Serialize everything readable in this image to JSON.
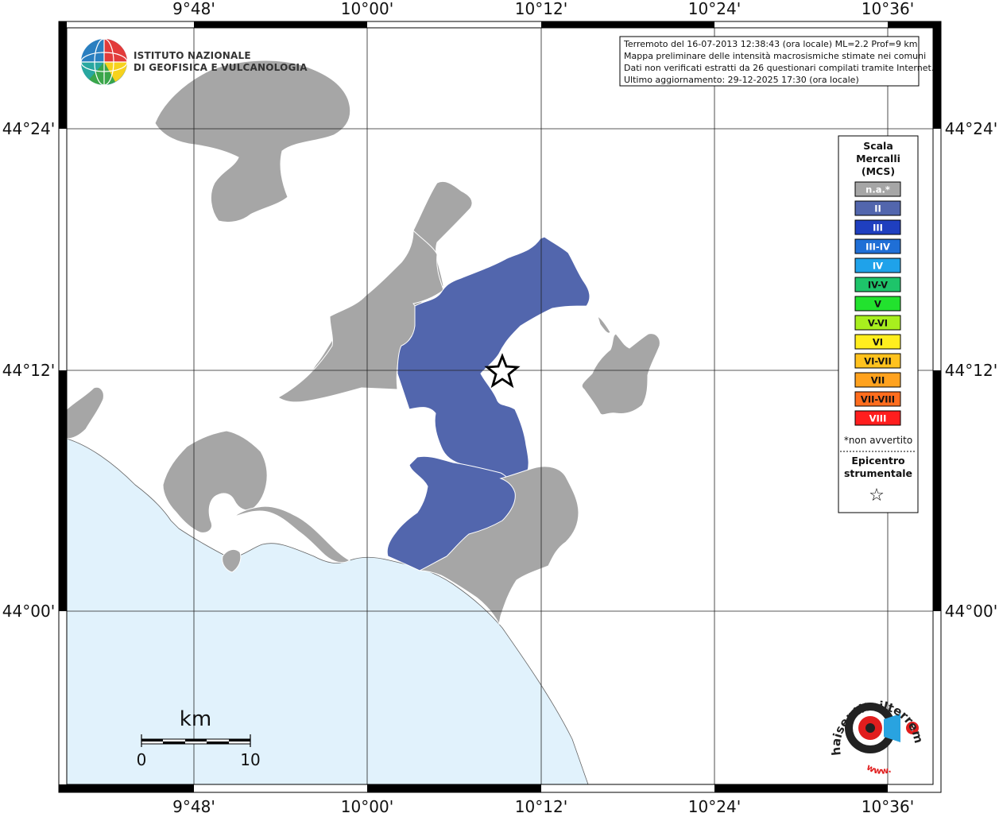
{
  "institute": {
    "line1": "ISTITUTO NAZIONALE",
    "line2": "DI GEOFISICA E VULCANOLOGIA"
  },
  "info_box": {
    "lines": [
      "Terremoto del 16-07-2013 12:38:43 (ora locale) ML=2.2 Prof=9 km",
      "Mappa preliminare delle intensità macrosismiche stimate nei comuni",
      "Dati non verificati estratti da 26 questionari compilati tramite Internet.",
      "Ultimo aggiornamento: 29-12-2025 17:30 (ora locale)"
    ]
  },
  "axes": {
    "top_ticks": [
      "9°48'",
      "10°00'",
      "10°12'",
      "10°24'",
      "10°36'"
    ],
    "bottom_ticks": [
      "9°48'",
      "10°00'",
      "10°12'",
      "10°24'",
      "10°36'"
    ],
    "left_ticks": [
      "44°24'",
      "44°12'",
      "44°00'"
    ],
    "right_ticks": [
      "44°24'",
      "44°12'",
      "44°00'"
    ]
  },
  "legend": {
    "title_lines": [
      "Scala",
      "Mercalli",
      "(MCS)"
    ],
    "items": [
      {
        "label": "n.a.*",
        "color": "#a6a6a6",
        "text_color": "#ffffff"
      },
      {
        "label": "II",
        "color": "#5266ad",
        "text_color": "#ffffff"
      },
      {
        "label": "III",
        "color": "#1f3fbf",
        "text_color": "#ffffff"
      },
      {
        "label": "III-IV",
        "color": "#1f6fd6",
        "text_color": "#ffffff"
      },
      {
        "label": "IV",
        "color": "#1fa2ea",
        "text_color": "#ffffff"
      },
      {
        "label": "IV-V",
        "color": "#1ec46a",
        "text_color": "#111111"
      },
      {
        "label": "V",
        "color": "#22e22e",
        "text_color": "#111111"
      },
      {
        "label": "V-VI",
        "color": "#a8ef1e",
        "text_color": "#111111"
      },
      {
        "label": "VI",
        "color": "#ffee1e",
        "text_color": "#111111"
      },
      {
        "label": "VI-VII",
        "color": "#ffc21e",
        "text_color": "#111111"
      },
      {
        "label": "VII",
        "color": "#ffa21e",
        "text_color": "#111111"
      },
      {
        "label": "VII-VIII",
        "color": "#ff6d1e",
        "text_color": "#111111"
      },
      {
        "label": "VIII",
        "color": "#ff1e1e",
        "text_color": "#ffffff"
      }
    ],
    "note": "*non avvertito",
    "epicenter_lines": [
      "Epicentro",
      "strumentale"
    ],
    "epicenter_symbol": "☆"
  },
  "scale_bar": {
    "unit": "km",
    "start": "0",
    "end": "10"
  },
  "watermark": {
    "text": "haisentitoilterremoto.it",
    "www": "www."
  },
  "colors": {
    "sea": "#e1f2fc",
    "land_na": "#a6a6a6",
    "intensity_II": "#5266ad",
    "frame": "#000000"
  }
}
